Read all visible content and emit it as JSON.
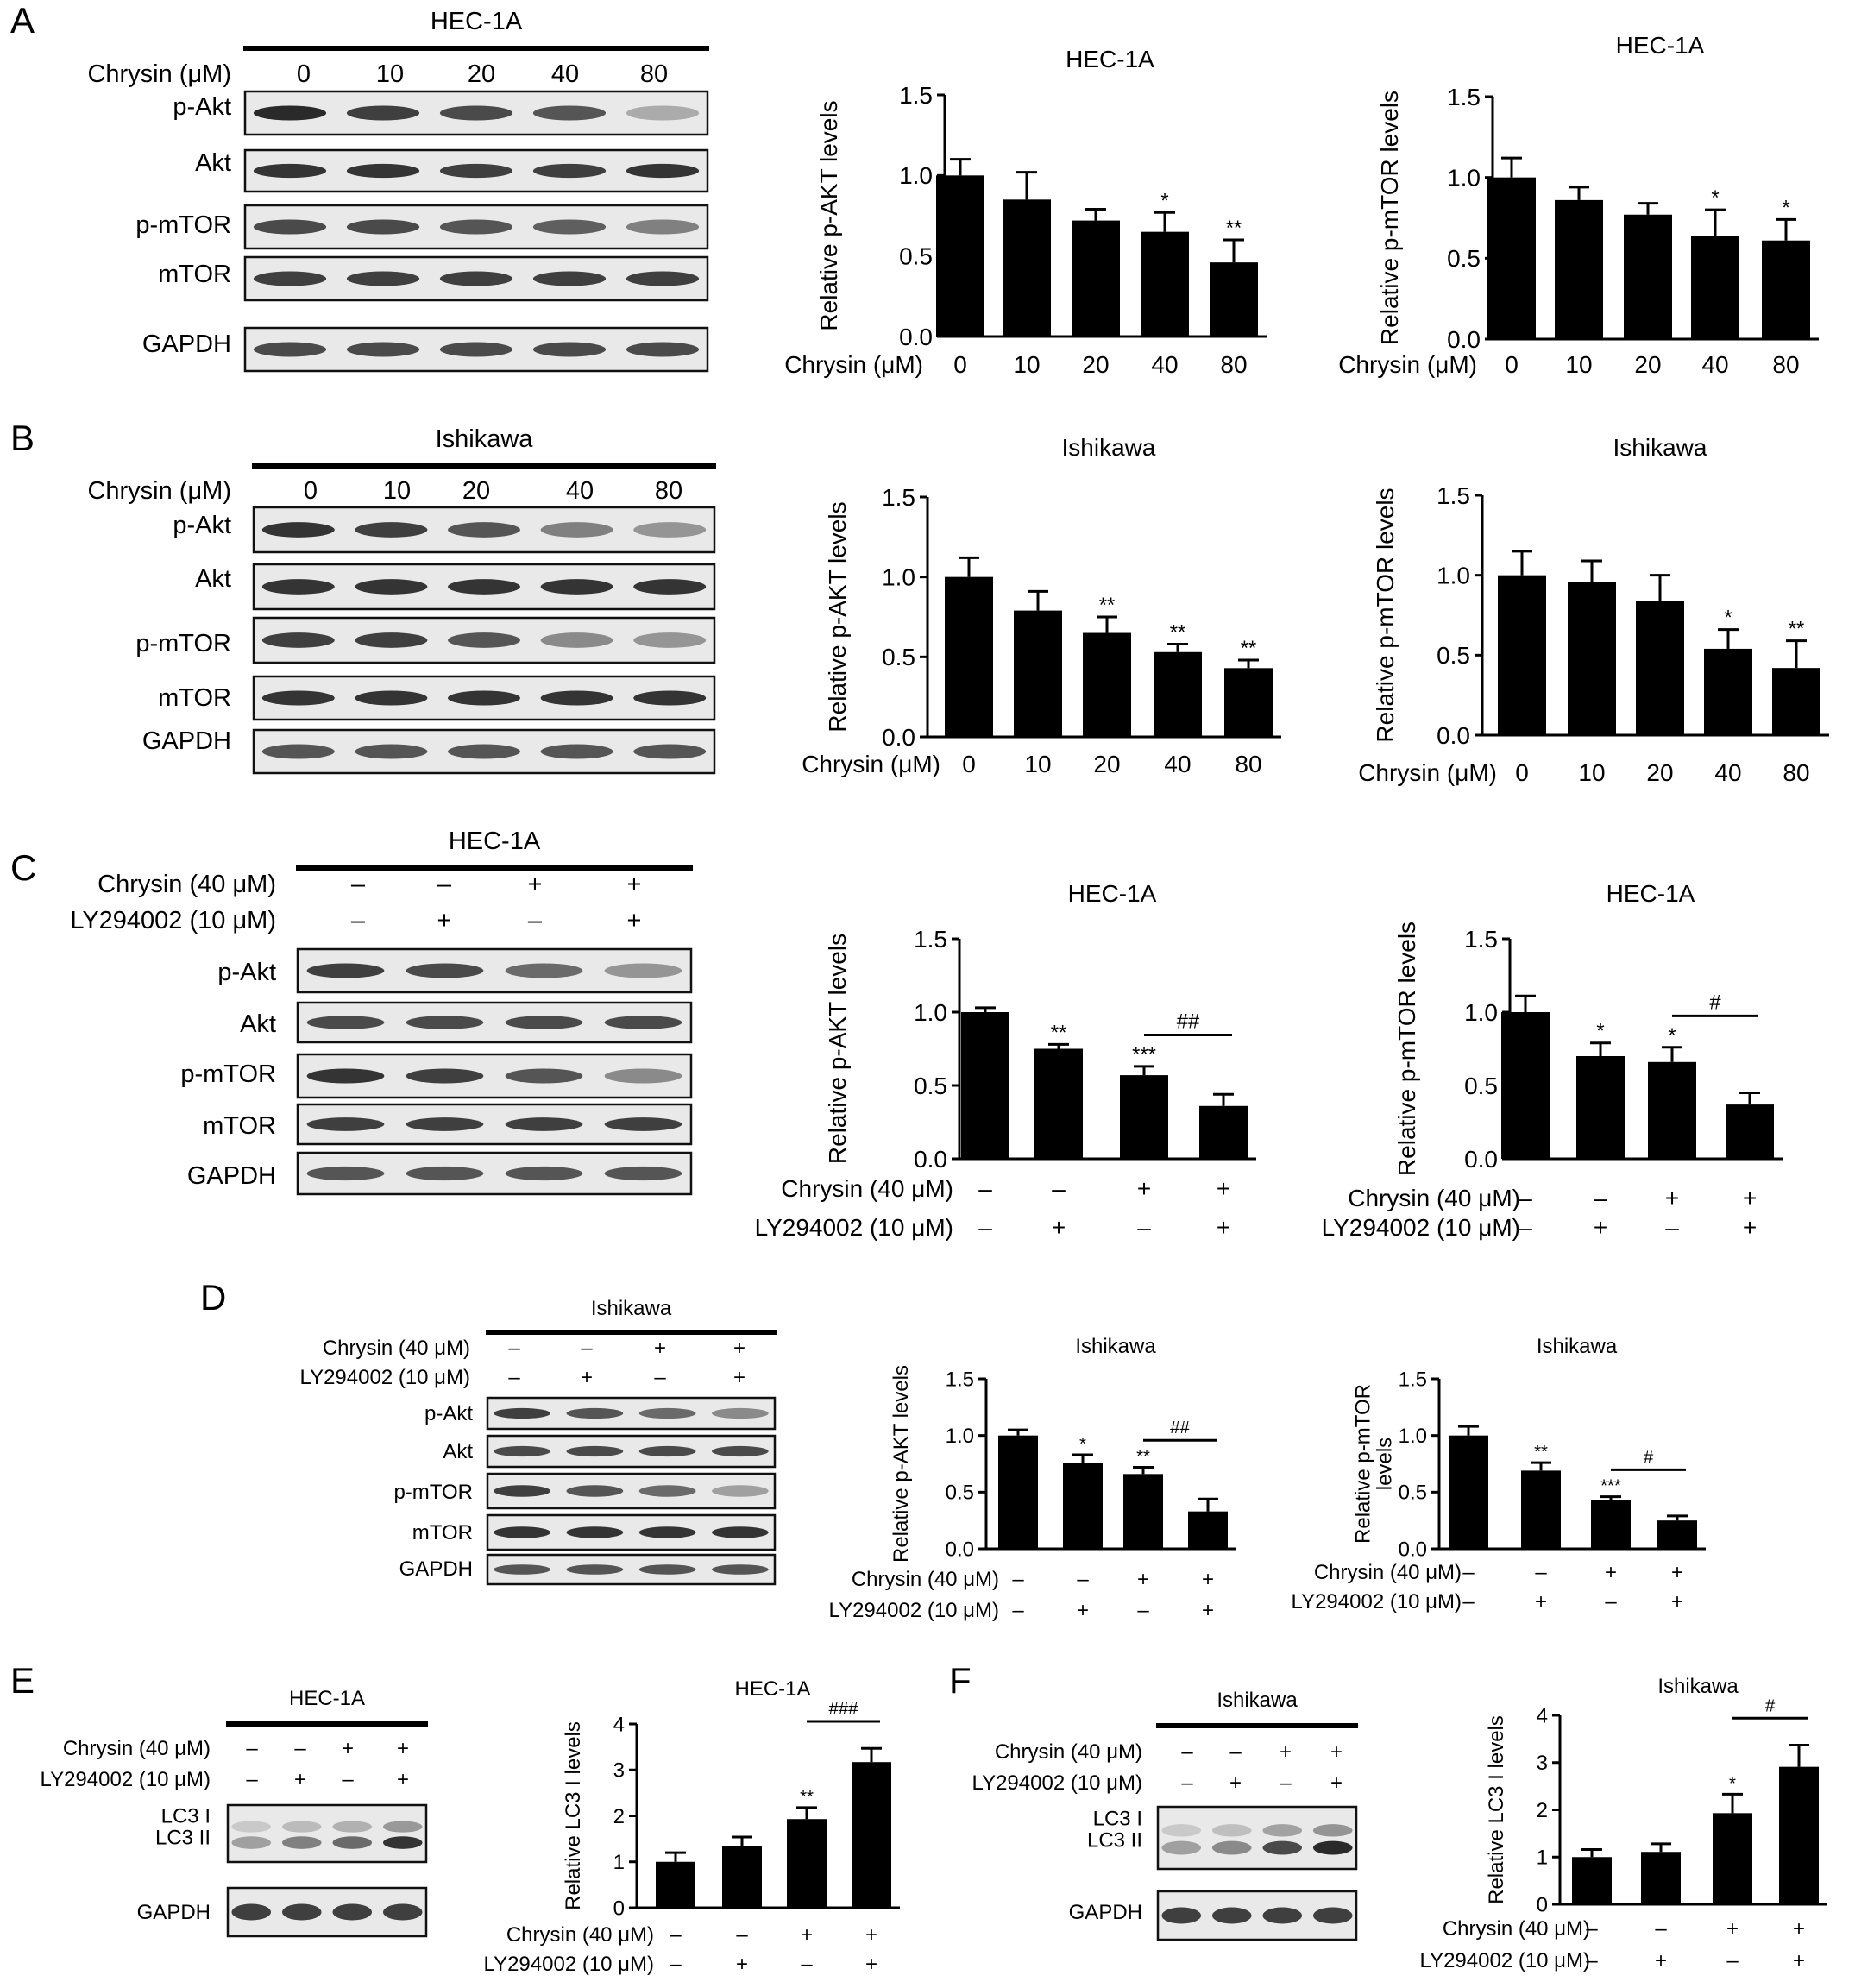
{
  "figure": {
    "panels": [
      {
        "letter": "A",
        "blot": {
          "cell": "HEC-1A",
          "mode": "conc",
          "cond_label": "Chrysin (μM)",
          "lanes": [
            "0",
            "10",
            "20",
            "40",
            "80"
          ],
          "rows": [
            {
              "label": "p-Akt",
              "bands": [
                0.9,
                0.8,
                0.75,
                0.7,
                0.3
              ]
            },
            {
              "label": "Akt",
              "bands": [
                0.85,
                0.85,
                0.8,
                0.8,
                0.85
              ]
            },
            {
              "label": "p-mTOR",
              "bands": [
                0.75,
                0.75,
                0.7,
                0.65,
                0.5
              ]
            },
            {
              "label": "mTOR",
              "bands": [
                0.8,
                0.8,
                0.8,
                0.8,
                0.8
              ]
            },
            {
              "label": "GAPDH",
              "bands": [
                0.75,
                0.75,
                0.75,
                0.75,
                0.75
              ]
            }
          ]
        }
      },
      {
        "letter": "B",
        "blot": {
          "cell": "Ishikawa",
          "mode": "conc",
          "cond_label": "Chrysin (μM)",
          "lanes": [
            "0",
            "10",
            "20",
            "40",
            "80"
          ],
          "rows": [
            {
              "label": "p-Akt",
              "bands": [
                0.85,
                0.8,
                0.7,
                0.5,
                0.4
              ]
            },
            {
              "label": "Akt",
              "bands": [
                0.85,
                0.85,
                0.85,
                0.85,
                0.85
              ]
            },
            {
              "label": "p-mTOR",
              "bands": [
                0.8,
                0.8,
                0.7,
                0.45,
                0.4
              ]
            },
            {
              "label": "mTOR",
              "bands": [
                0.85,
                0.85,
                0.85,
                0.85,
                0.85
              ]
            },
            {
              "label": "GAPDH",
              "bands": [
                0.7,
                0.7,
                0.7,
                0.7,
                0.7
              ]
            }
          ]
        }
      },
      {
        "letter": "C",
        "blot": {
          "cell": "HEC-1A",
          "mode": "pm",
          "row_labels": [
            "Chrysin (40 μM)",
            "LY294002 (10 μM)"
          ],
          "signs": [
            [
              "–",
              "–",
              "+",
              "+"
            ],
            [
              "–",
              "+",
              "–",
              "+"
            ]
          ],
          "rows": [
            {
              "label": "p-Akt",
              "bands": [
                0.8,
                0.75,
                0.6,
                0.4
              ]
            },
            {
              "label": "Akt",
              "bands": [
                0.75,
                0.75,
                0.75,
                0.75
              ]
            },
            {
              "label": "p-mTOR",
              "bands": [
                0.85,
                0.8,
                0.7,
                0.45
              ]
            },
            {
              "label": "mTOR",
              "bands": [
                0.8,
                0.8,
                0.8,
                0.8
              ]
            },
            {
              "label": "GAPDH",
              "bands": [
                0.7,
                0.7,
                0.7,
                0.7
              ]
            }
          ]
        }
      },
      {
        "letter": "D",
        "blot": {
          "cell": "Ishikawa",
          "mode": "pm",
          "row_labels": [
            "Chrysin (40 μM)",
            "LY294002 (10 μM)"
          ],
          "signs": [
            [
              "–",
              "–",
              "+",
              "+"
            ],
            [
              "–",
              "+",
              "–",
              "+"
            ]
          ],
          "rows": [
            {
              "label": "p-Akt",
              "bands": [
                0.8,
                0.7,
                0.6,
                0.45
              ]
            },
            {
              "label": "Akt",
              "bands": [
                0.75,
                0.75,
                0.75,
                0.75
              ]
            },
            {
              "label": "p-mTOR",
              "bands": [
                0.8,
                0.7,
                0.6,
                0.35
              ]
            },
            {
              "label": "mTOR",
              "bands": [
                0.85,
                0.85,
                0.85,
                0.85
              ]
            },
            {
              "label": "GAPDH",
              "bands": [
                0.7,
                0.7,
                0.7,
                0.7
              ]
            }
          ]
        }
      },
      {
        "letter": "E",
        "blot": {
          "cell": "HEC-1A",
          "mode": "pm",
          "row_labels": [
            "Chrysin (40 μM)",
            "LY294002 (10 μM)"
          ],
          "signs": [
            [
              "–",
              "–",
              "+",
              "+"
            ],
            [
              "–",
              "+",
              "–",
              "+"
            ]
          ],
          "rows": [
            {
              "label": "LC3 I\nLC3 II",
              "bands": [
                0.35,
                0.5,
                0.6,
                0.85
              ]
            },
            {
              "label": "GAPDH",
              "bands": [
                0.8,
                0.8,
                0.8,
                0.8
              ]
            }
          ]
        }
      },
      {
        "letter": "F",
        "blot": {
          "cell": "Ishikawa",
          "mode": "pm",
          "row_labels": [
            "Chrysin (40 μM)",
            "LY294002 (10 μM)"
          ],
          "signs": [
            [
              "–",
              "–",
              "+",
              "+"
            ],
            [
              "–",
              "+",
              "–",
              "+"
            ]
          ],
          "rows": [
            {
              "label": "LC3 I\nLC3 II",
              "bands": [
                0.35,
                0.45,
                0.75,
                0.9
              ]
            },
            {
              "label": "GAPDH",
              "bands": [
                0.8,
                0.8,
                0.8,
                0.8
              ]
            }
          ]
        }
      }
    ]
  },
  "chart_data": [
    {
      "panel": "A",
      "type": "bar",
      "title": "HEC-1A",
      "ylabel": "Relative p-AKT levels",
      "xlabel": "Chrysin (μM)",
      "categories": [
        "0",
        "10",
        "20",
        "40",
        "80"
      ],
      "values": [
        1.0,
        0.85,
        0.72,
        0.65,
        0.46
      ],
      "errors": [
        0.1,
        0.17,
        0.07,
        0.12,
        0.14
      ],
      "significance": [
        "",
        "",
        "",
        "*",
        "**"
      ],
      "ylim": [
        0,
        1.5
      ],
      "yticks": [
        "0.0",
        "0.5",
        "1.0",
        "1.5"
      ]
    },
    {
      "panel": "A",
      "type": "bar",
      "title": "HEC-1A",
      "ylabel": "Relative p-mTOR levels",
      "xlabel": "Chrysin (μM)",
      "categories": [
        "0",
        "10",
        "20",
        "40",
        "80"
      ],
      "values": [
        1.0,
        0.86,
        0.77,
        0.64,
        0.61
      ],
      "errors": [
        0.12,
        0.08,
        0.07,
        0.16,
        0.13
      ],
      "significance": [
        "",
        "",
        "",
        "*",
        "*"
      ],
      "ylim": [
        0,
        1.5
      ],
      "yticks": [
        "0.0",
        "0.5",
        "1.0",
        "1.5"
      ]
    },
    {
      "panel": "B",
      "type": "bar",
      "title": "Ishikawa",
      "ylabel": "Relative p-AKT levels",
      "xlabel": "Chrysin (μM)",
      "categories": [
        "0",
        "10",
        "20",
        "40",
        "80"
      ],
      "values": [
        1.0,
        0.79,
        0.65,
        0.53,
        0.43
      ],
      "errors": [
        0.12,
        0.12,
        0.1,
        0.05,
        0.05
      ],
      "significance": [
        "",
        "",
        "**",
        "**",
        "**"
      ],
      "ylim": [
        0,
        1.5
      ],
      "yticks": [
        "0.0",
        "0.5",
        "1.0",
        "1.5"
      ]
    },
    {
      "panel": "B",
      "type": "bar",
      "title": "Ishikawa",
      "ylabel": "Relative p-mTOR levels",
      "xlabel": "Chrysin (μM)",
      "categories": [
        "0",
        "10",
        "20",
        "40",
        "80"
      ],
      "values": [
        1.0,
        0.96,
        0.84,
        0.54,
        0.42
      ],
      "errors": [
        0.15,
        0.13,
        0.16,
        0.12,
        0.17
      ],
      "significance": [
        "",
        "",
        "",
        "*",
        "**"
      ],
      "ylim": [
        0,
        1.5
      ],
      "yticks": [
        "0.0",
        "0.5",
        "1.0",
        "1.5"
      ]
    },
    {
      "panel": "C",
      "type": "bar",
      "title": "HEC-1A",
      "ylabel": "Relative p-AKT levels",
      "row_labels": [
        "Chrysin (40 μM)",
        "LY294002 (10 μM)"
      ],
      "signs": [
        [
          "–",
          "–",
          "+",
          "+"
        ],
        [
          "–",
          "+",
          "–",
          "+"
        ]
      ],
      "values": [
        1.0,
        0.75,
        0.57,
        0.36
      ],
      "errors": [
        0.03,
        0.03,
        0.06,
        0.08
      ],
      "significance": [
        "",
        "**",
        "***",
        ""
      ],
      "bracket": {
        "from": 2,
        "to": 3,
        "label": "##"
      },
      "ylim": [
        0,
        1.5
      ],
      "yticks": [
        "0.0",
        "0.5",
        "1.0",
        "1.5"
      ]
    },
    {
      "panel": "C",
      "type": "bar",
      "title": "HEC-1A",
      "ylabel": "Relative p-mTOR levels",
      "row_labels": [
        "Chrysin (40 μM)",
        "LY294002 (10 μM)"
      ],
      "signs": [
        [
          "–",
          "–",
          "+",
          "+"
        ],
        [
          "–",
          "+",
          "–",
          "+"
        ]
      ],
      "values": [
        1.0,
        0.7,
        0.66,
        0.37
      ],
      "errors": [
        0.11,
        0.09,
        0.1,
        0.08
      ],
      "significance": [
        "",
        "*",
        "*",
        ""
      ],
      "bracket": {
        "from": 2,
        "to": 3,
        "label": "#"
      },
      "ylim": [
        0,
        1.5
      ],
      "yticks": [
        "0.0",
        "0.5",
        "1.0",
        "1.5"
      ]
    },
    {
      "panel": "D",
      "type": "bar",
      "title": "Ishikawa",
      "ylabel": "Relative p-AKT levels",
      "row_labels": [
        "Chrysin (40 μM)",
        "LY294002 (10 μM)"
      ],
      "signs": [
        [
          "–",
          "–",
          "+",
          "+"
        ],
        [
          "–",
          "+",
          "–",
          "+"
        ]
      ],
      "values": [
        1.0,
        0.76,
        0.66,
        0.33
      ],
      "errors": [
        0.05,
        0.07,
        0.06,
        0.11
      ],
      "significance": [
        "",
        "*",
        "**",
        ""
      ],
      "bracket": {
        "from": 2,
        "to": 3,
        "label": "##"
      },
      "ylim": [
        0,
        1.5
      ],
      "yticks": [
        "0.0",
        "0.5",
        "1.0",
        "1.5"
      ]
    },
    {
      "panel": "D",
      "type": "bar",
      "title": "Ishikawa",
      "ylabel": "Relative p-mTOR\nlevels",
      "row_labels": [
        "Chrysin (40 μM)",
        "LY294002 (10 μM)"
      ],
      "signs": [
        [
          "–",
          "–",
          "+",
          "+"
        ],
        [
          "–",
          "+",
          "–",
          "+"
        ]
      ],
      "values": [
        1.0,
        0.69,
        0.43,
        0.25
      ],
      "errors": [
        0.08,
        0.07,
        0.03,
        0.04
      ],
      "significance": [
        "",
        "**",
        "***",
        ""
      ],
      "bracket": {
        "from": 2,
        "to": 3,
        "label": "#"
      },
      "ylim": [
        0,
        1.5
      ],
      "yticks": [
        "0.0",
        "0.5",
        "1.0",
        "1.5"
      ]
    },
    {
      "panel": "E",
      "type": "bar",
      "title": "HEC-1A",
      "ylabel": "Relative LC3 I levels",
      "row_labels": [
        "Chrysin (40 μM)",
        "LY294002 (10 μM)"
      ],
      "signs": [
        [
          "–",
          "–",
          "+",
          "+"
        ],
        [
          "–",
          "+",
          "–",
          "+"
        ]
      ],
      "values": [
        1.0,
        1.34,
        1.93,
        3.17
      ],
      "errors": [
        0.2,
        0.2,
        0.25,
        0.3
      ],
      "significance": [
        "",
        "",
        "**",
        ""
      ],
      "bracket": {
        "from": 2,
        "to": 3,
        "label": "###"
      },
      "ylim": [
        0,
        4
      ],
      "yticks": [
        "0",
        "1",
        "2",
        "3",
        "4"
      ]
    },
    {
      "panel": "F",
      "type": "bar",
      "title": "Ishikawa",
      "ylabel": "Relative LC3 I levels",
      "row_labels": [
        "Chrysin (40 μM)",
        "LY294002 (10 μM)"
      ],
      "signs": [
        [
          "–",
          "–",
          "+",
          "+"
        ],
        [
          "–",
          "+",
          "–",
          "+"
        ]
      ],
      "values": [
        1.0,
        1.11,
        1.93,
        2.91
      ],
      "errors": [
        0.16,
        0.17,
        0.4,
        0.46
      ],
      "significance": [
        "",
        "",
        "*",
        ""
      ],
      "bracket": {
        "from": 2,
        "to": 3,
        "label": "#"
      },
      "ylim": [
        0,
        4
      ],
      "yticks": [
        "0",
        "1",
        "2",
        "3",
        "4"
      ]
    }
  ]
}
